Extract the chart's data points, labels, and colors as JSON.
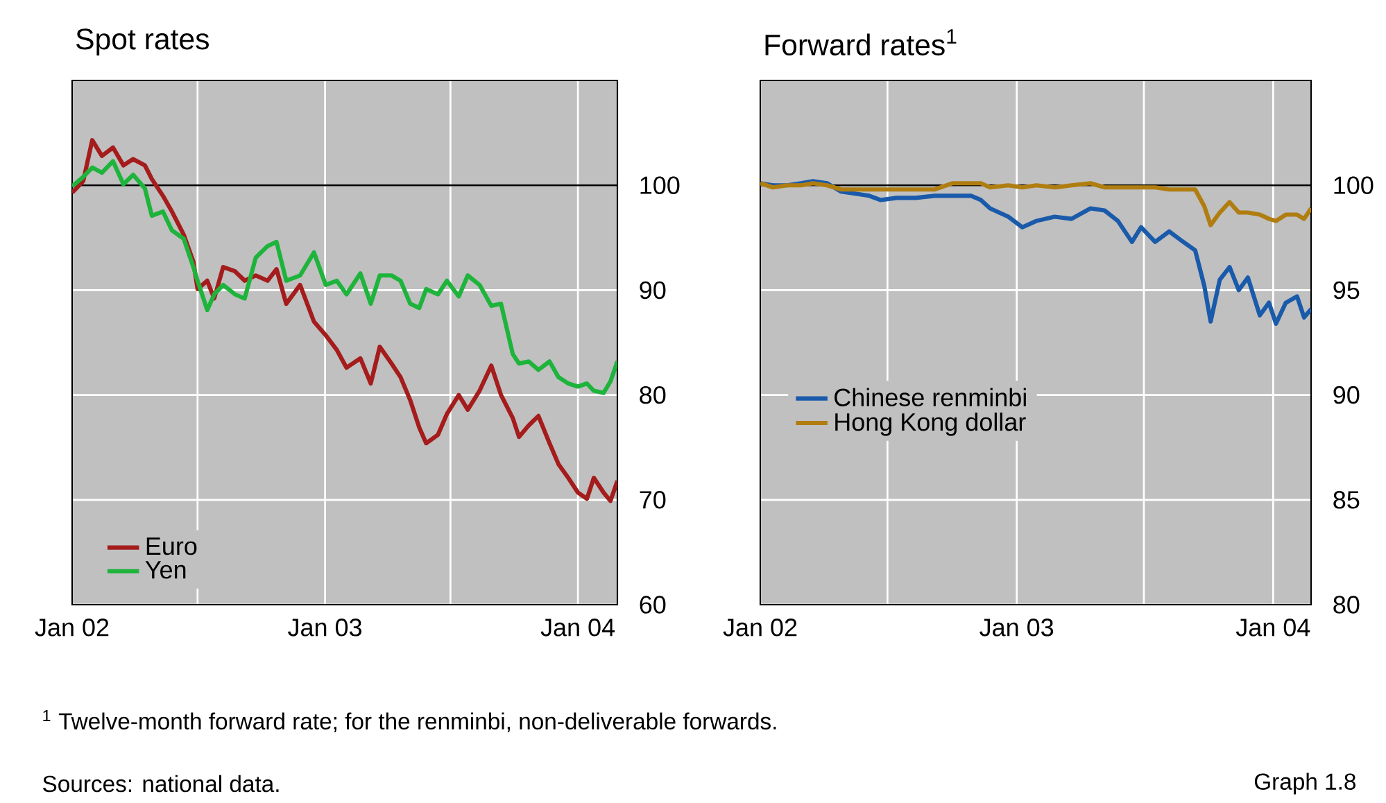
{
  "chart_data": [
    {
      "type": "line",
      "title": "Spot rates",
      "x": [
        "2002-01-01",
        "2002-01-17",
        "2002-01-30",
        "2002-02-13",
        "2002-03-01",
        "2002-03-16",
        "2002-03-30",
        "2002-04-16",
        "2002-04-26",
        "2002-05-12",
        "2002-05-25",
        "2002-06-11",
        "2002-06-25",
        "2002-07-01",
        "2002-07-15",
        "2002-07-25",
        "2002-08-07",
        "2002-08-24",
        "2002-09-07",
        "2002-09-23",
        "2002-10-10",
        "2002-10-23",
        "2002-11-06",
        "2002-11-26",
        "2002-12-16",
        "2003-01-02",
        "2003-01-18",
        "2003-02-01",
        "2003-02-21",
        "2003-03-08",
        "2003-03-21",
        "2003-04-07",
        "2003-04-20",
        "2003-05-04",
        "2003-05-17",
        "2003-05-27",
        "2003-06-13",
        "2003-06-26",
        "2003-07-13",
        "2003-07-26",
        "2003-08-12",
        "2003-08-29",
        "2003-09-12",
        "2003-09-29",
        "2003-10-08",
        "2003-10-22",
        "2003-11-05",
        "2003-11-21",
        "2003-12-04",
        "2003-12-18",
        "2004-01-01",
        "2004-01-14",
        "2004-01-24",
        "2004-02-07",
        "2004-02-17",
        "2004-02-27"
      ],
      "series": [
        {
          "name": "Euro",
          "color": "#a51c1c",
          "values": [
            99.3,
            100.4,
            104.3,
            102.8,
            103.6,
            101.9,
            102.5,
            101.9,
            100.6,
            99.0,
            97.5,
            95.3,
            92.7,
            90.1,
            90.9,
            89.2,
            92.2,
            91.8,
            90.9,
            91.4,
            90.9,
            92.0,
            88.7,
            90.5,
            87.0,
            85.7,
            84.3,
            82.6,
            83.5,
            81.1,
            84.6,
            83.0,
            81.7,
            79.5,
            76.9,
            75.4,
            76.2,
            78.2,
            80.0,
            78.6,
            80.4,
            82.8,
            80.0,
            77.8,
            76.0,
            77.1,
            78.0,
            75.4,
            73.4,
            72.1,
            70.7,
            70.1,
            72.1,
            70.7,
            69.9,
            71.8
          ]
        },
        {
          "name": "Yen",
          "color": "#1eb43c",
          "values": [
            99.9,
            100.8,
            101.7,
            101.2,
            102.3,
            100.1,
            101.0,
            99.7,
            97.1,
            97.5,
            95.7,
            94.9,
            92.2,
            90.9,
            88.1,
            89.6,
            90.5,
            89.6,
            89.2,
            93.1,
            94.2,
            94.6,
            90.9,
            91.4,
            93.6,
            90.5,
            90.9,
            89.6,
            91.6,
            88.7,
            91.4,
            91.4,
            90.9,
            88.7,
            88.3,
            90.1,
            89.6,
            90.9,
            89.4,
            91.4,
            90.5,
            88.5,
            88.7,
            83.9,
            83.0,
            83.2,
            82.4,
            83.2,
            81.7,
            81.1,
            80.8,
            81.1,
            80.4,
            80.2,
            81.3,
            83.2
          ]
        }
      ],
      "xlim": [
        "2002-01-01",
        "2004-02-27"
      ],
      "xticks": [
        {
          "value": "2002-01-01",
          "label": "Jan 02"
        },
        {
          "value": "2002-07-01",
          "label": null
        },
        {
          "value": "2003-01-01",
          "label": "Jan 03"
        },
        {
          "value": "2003-07-01",
          "label": null
        },
        {
          "value": "2004-01-01",
          "label": "Jan 04"
        }
      ],
      "ylim": [
        60,
        110
      ],
      "yticks": [
        60,
        70,
        80,
        90,
        100
      ],
      "ref_lines": [
        {
          "axis": "y",
          "value": 100,
          "color": "#000000"
        }
      ],
      "grid": true,
      "legend": "bottom left"
    },
    {
      "type": "line",
      "title": "Forward rates$^{1}$",
      "x": [
        "2002-01-01",
        "2002-01-19",
        "2002-02-08",
        "2002-02-28",
        "2002-03-17",
        "2002-04-06",
        "2002-04-26",
        "2002-05-16",
        "2002-06-05",
        "2002-06-21",
        "2002-07-14",
        "2002-08-10",
        "2002-09-06",
        "2002-10-02",
        "2002-10-28",
        "2002-11-11",
        "2002-11-24",
        "2002-12-20",
        "2003-01-09",
        "2003-01-29",
        "2003-02-24",
        "2003-03-20",
        "2003-04-16",
        "2003-05-06",
        "2003-05-25",
        "2003-06-14",
        "2003-06-27",
        "2003-07-17",
        "2003-08-06",
        "2003-08-26",
        "2003-09-12",
        "2003-09-25",
        "2003-10-04",
        "2003-10-17",
        "2003-10-31",
        "2003-11-13",
        "2003-11-26",
        "2003-12-13",
        "2003-12-26",
        "2004-01-05",
        "2004-01-19",
        "2004-02-04",
        "2004-02-14",
        "2004-02-24"
      ],
      "series": [
        {
          "name": "Chinese renminbi",
          "color": "#1a5aaa",
          "values": [
            100.1,
            100.0,
            100.0,
            100.1,
            100.2,
            100.1,
            99.7,
            99.6,
            99.5,
            99.3,
            99.4,
            99.4,
            99.5,
            99.5,
            99.5,
            99.3,
            98.9,
            98.5,
            98.0,
            98.3,
            98.5,
            98.4,
            98.9,
            98.8,
            98.3,
            97.3,
            98.0,
            97.3,
            97.8,
            97.3,
            96.9,
            95.2,
            93.5,
            95.5,
            96.1,
            95.0,
            95.6,
            93.8,
            94.4,
            93.4,
            94.4,
            94.7,
            93.7,
            94.1
          ]
        },
        {
          "name": "Hong Kong dollar",
          "color": "#b07d10",
          "values": [
            100.1,
            99.9,
            100.0,
            100.0,
            100.1,
            100.0,
            99.8,
            99.8,
            99.8,
            99.8,
            99.8,
            99.8,
            99.8,
            100.1,
            100.1,
            100.1,
            99.9,
            100.0,
            99.9,
            100.0,
            99.9,
            100.0,
            100.1,
            99.9,
            99.9,
            99.9,
            99.9,
            99.9,
            99.8,
            99.8,
            99.8,
            99.0,
            98.1,
            98.7,
            99.2,
            98.7,
            98.7,
            98.6,
            98.4,
            98.3,
            98.6,
            98.6,
            98.4,
            98.9
          ]
        }
      ],
      "xlim": [
        "2002-01-01",
        "2004-02-24"
      ],
      "xticks": [
        {
          "value": "2002-01-01",
          "label": "Jan 02"
        },
        {
          "value": "2002-07-01",
          "label": null
        },
        {
          "value": "2003-01-01",
          "label": "Jan 03"
        },
        {
          "value": "2003-07-01",
          "label": null
        },
        {
          "value": "2004-01-01",
          "label": "Jan 04"
        }
      ],
      "ylim": [
        80,
        105
      ],
      "yticks": [
        80,
        85,
        90,
        95,
        100
      ],
      "ref_lines": [
        {
          "axis": "y",
          "value": 100,
          "color": "#000000"
        }
      ],
      "grid": true,
      "legend": "center left",
      "annotations": [
        "$^{1}$  Twelve-month forward rate; for the renminbi, non-deliverable forwards.",
        "Sources: national data.",
        "Graph 1.8"
      ]
    }
  ]
}
